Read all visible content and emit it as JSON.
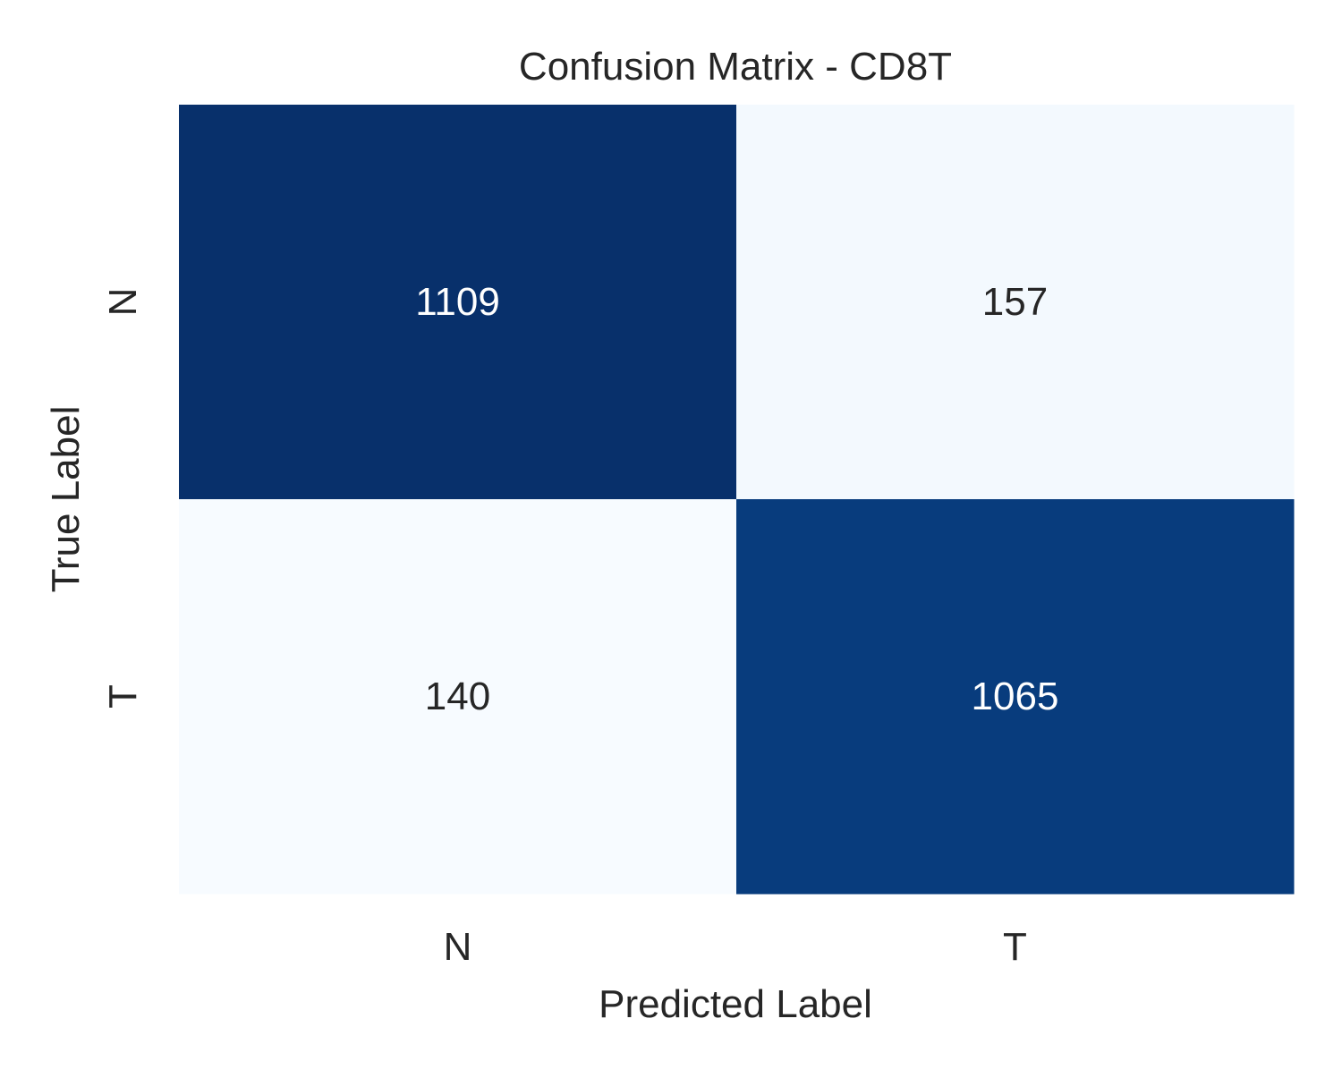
{
  "chart_data": {
    "type": "heatmap",
    "title": "Confusion Matrix - CD8T",
    "xlabel": "Predicted Label",
    "ylabel": "True Label",
    "x_categories": [
      "N",
      "T"
    ],
    "y_categories": [
      "N",
      "T"
    ],
    "values": [
      [
        1109,
        157
      ],
      [
        140,
        1065
      ]
    ],
    "colormap": "Blues",
    "colorbar": false,
    "grid": false,
    "colors": {
      "low": "#f7fbff",
      "high": "#08306b",
      "text_dark": "#262626",
      "text_light": "#ffffff"
    }
  }
}
